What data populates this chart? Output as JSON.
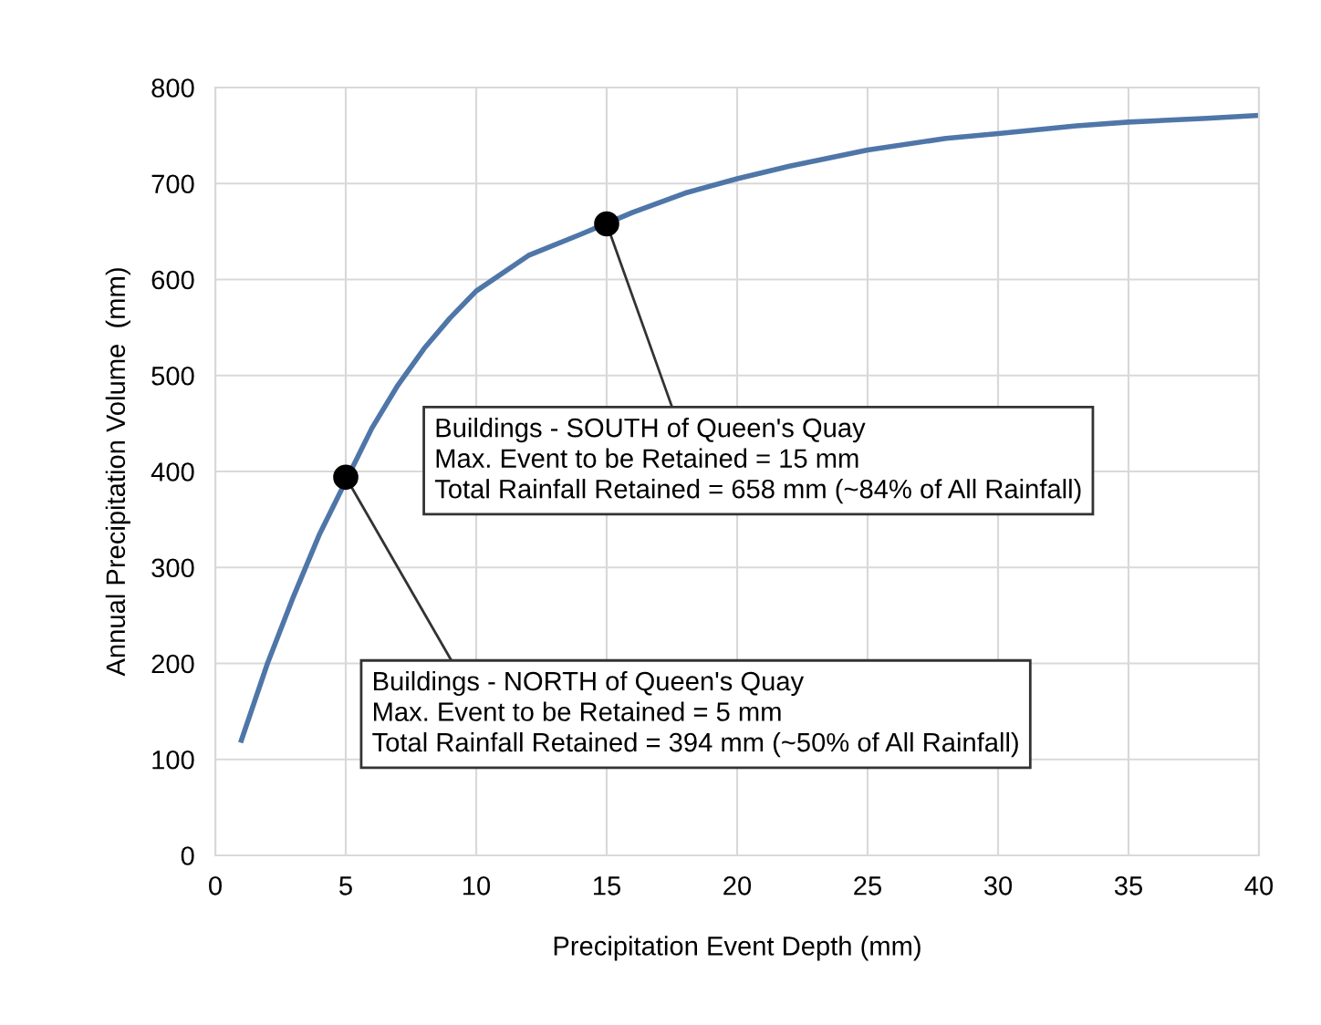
{
  "chart_data": {
    "type": "line",
    "xlabel": "Precipitation Event Depth (mm)",
    "ylabel": "Annual Precipitation Volume  (mm)",
    "xlim": [
      0,
      40
    ],
    "xticks": [
      0,
      5,
      10,
      15,
      20,
      25,
      30,
      35,
      40
    ],
    "ylim": [
      0,
      800
    ],
    "yticks": [
      0,
      100,
      200,
      300,
      400,
      500,
      600,
      700,
      800
    ],
    "grid": true,
    "series": [
      {
        "color": "#4f76a8",
        "marker": "none",
        "x": [
          1,
          2,
          3,
          4,
          6,
          7,
          8,
          9,
          10,
          12,
          14,
          16,
          18,
          20,
          22,
          25,
          28,
          30,
          33,
          35,
          38,
          40
        ],
        "values": [
          120,
          200,
          270,
          335,
          445,
          490,
          528,
          560,
          588,
          625,
          647,
          670,
          690,
          705,
          718,
          735,
          747,
          752,
          760,
          764,
          768,
          771
        ]
      },
      {
        "type": "scatter",
        "color": "#000000",
        "marker": "circle",
        "x": [
          5,
          15
        ],
        "values": [
          394,
          658
        ]
      }
    ],
    "annotations": [
      {
        "text": "Buildings - SOUTH of Queen's Quay\nMax. Event to be Retained = 15 mm\nTotal Rainfall Retained = 658 mm (~84% of All Rainfall)",
        "x": 15,
        "y": 658
      },
      {
        "text": "Buildings - NORTH of Queen's Quay\nMax. Event to be Retained = 5 mm\nTotal Rainfall Retained = 394 mm (~50% of All Rainfall)",
        "x": 5,
        "y": 394
      }
    ]
  }
}
